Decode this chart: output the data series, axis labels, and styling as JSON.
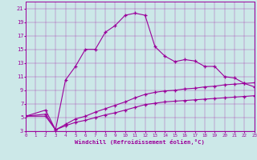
{
  "xlabel": "Windchill (Refroidissement éolien,°C)",
  "background_color": "#cce8e8",
  "line_color": "#9b009b",
  "xlim": [
    0,
    23
  ],
  "ylim": [
    3,
    22
  ],
  "xticks": [
    0,
    1,
    2,
    3,
    4,
    5,
    6,
    7,
    8,
    9,
    10,
    11,
    12,
    13,
    14,
    15,
    16,
    17,
    18,
    19,
    20,
    21,
    22,
    23
  ],
  "yticks": [
    3,
    5,
    7,
    9,
    11,
    13,
    15,
    17,
    19,
    21
  ],
  "curve1_x": [
    0,
    2,
    3,
    4,
    5,
    6,
    7,
    8,
    9,
    10,
    11,
    12,
    13,
    14,
    15,
    16,
    17,
    18,
    19,
    20,
    21,
    22,
    23
  ],
  "curve1_y": [
    5.2,
    6.1,
    3.2,
    10.5,
    12.5,
    15.0,
    15.0,
    17.5,
    18.5,
    20.0,
    20.3,
    20.0,
    15.4,
    14.0,
    13.2,
    13.5,
    13.3,
    12.5,
    12.5,
    11.0,
    10.8,
    10.0,
    9.5
  ],
  "curve2_x": [
    0,
    2,
    3,
    4,
    5,
    6,
    7,
    8,
    9,
    10,
    11,
    12,
    13,
    14,
    15,
    16,
    17,
    18,
    19,
    20,
    21,
    22,
    23
  ],
  "curve2_y": [
    5.2,
    5.5,
    3.2,
    4.0,
    4.8,
    5.2,
    5.8,
    6.3,
    6.8,
    7.3,
    7.9,
    8.4,
    8.7,
    8.9,
    9.0,
    9.2,
    9.3,
    9.5,
    9.6,
    9.8,
    9.9,
    10.0,
    10.1
  ],
  "curve3_x": [
    0,
    2,
    3,
    4,
    5,
    6,
    7,
    8,
    9,
    10,
    11,
    12,
    13,
    14,
    15,
    16,
    17,
    18,
    19,
    20,
    21,
    22,
    23
  ],
  "curve3_y": [
    5.2,
    5.2,
    3.2,
    3.8,
    4.3,
    4.6,
    5.0,
    5.4,
    5.7,
    6.1,
    6.5,
    6.9,
    7.1,
    7.3,
    7.4,
    7.5,
    7.6,
    7.7,
    7.8,
    7.9,
    8.0,
    8.1,
    8.2
  ]
}
